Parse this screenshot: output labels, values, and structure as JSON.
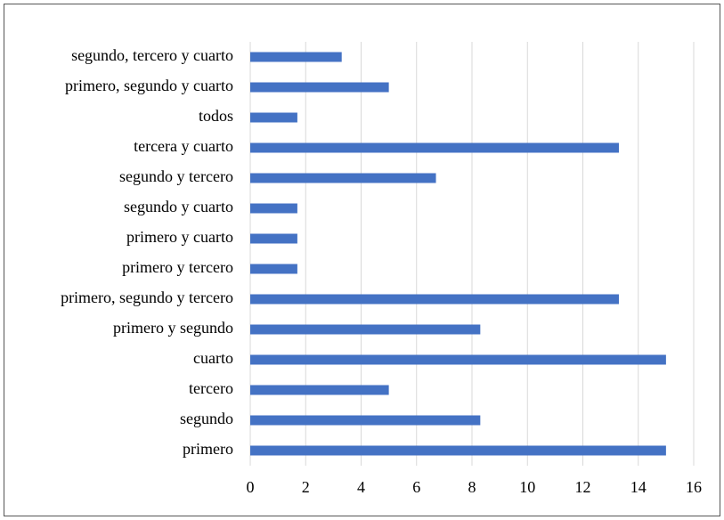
{
  "chart_data": {
    "type": "hbar",
    "categories": [
      "primero",
      "segundo",
      "tercero",
      "cuarto",
      "primero y segundo",
      "primero, segundo y tercero",
      "primero y tercero",
      "primero y cuarto",
      "segundo y cuarto",
      "segundo y tercero",
      "tercera y cuarto",
      "todos",
      "primero, segundo y cuarto",
      "segundo, tercero y cuarto"
    ],
    "values": [
      15,
      8.3,
      5,
      15,
      8.3,
      13.3,
      1.7,
      1.7,
      1.7,
      6.7,
      13.3,
      1.7,
      5,
      3.3
    ],
    "color": "#4472c4",
    "xlim": [
      0,
      16
    ],
    "xticks": [
      0,
      2,
      4,
      6,
      8,
      10,
      12,
      14,
      16
    ],
    "grid": true
  }
}
